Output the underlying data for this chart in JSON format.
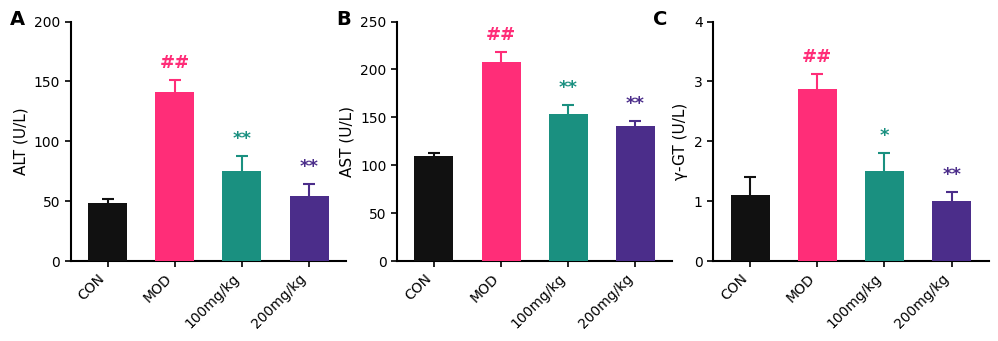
{
  "panels": [
    {
      "label": "A",
      "ylabel": "ALT (U/L)",
      "ylim": [
        0,
        200
      ],
      "yticks": [
        0,
        50,
        100,
        150,
        200
      ],
      "categories": [
        "CON",
        "MOD",
        "100mg/kg",
        "200mg/kg"
      ],
      "values": [
        48,
        141,
        75,
        54
      ],
      "errors": [
        4,
        10,
        13,
        10
      ],
      "colors": [
        "#111111",
        "#FF2D78",
        "#1A9080",
        "#4B2D8A"
      ],
      "annotations": [
        "",
        "##",
        "**",
        "**"
      ],
      "ann_colors": [
        "",
        "#FF2D78",
        "#1A9080",
        "#4B2D8A"
      ]
    },
    {
      "label": "B",
      "ylabel": "AST (U/L)",
      "ylim": [
        0,
        250
      ],
      "yticks": [
        0,
        50,
        100,
        150,
        200,
        250
      ],
      "categories": [
        "CON",
        "MOD",
        "100mg/kg",
        "200mg/kg"
      ],
      "values": [
        110,
        208,
        153,
        141
      ],
      "errors": [
        3,
        10,
        10,
        5
      ],
      "colors": [
        "#111111",
        "#FF2D78",
        "#1A9080",
        "#4B2D8A"
      ],
      "annotations": [
        "",
        "##",
        "**",
        "**"
      ],
      "ann_colors": [
        "",
        "#FF2D78",
        "#1A9080",
        "#4B2D8A"
      ]
    },
    {
      "label": "C",
      "ylabel": "γ-GT (U/L)",
      "ylim": [
        0,
        4
      ],
      "yticks": [
        0,
        1,
        2,
        3,
        4
      ],
      "categories": [
        "CON",
        "MOD",
        "100mg/kg",
        "200mg/kg"
      ],
      "values": [
        1.1,
        2.87,
        1.5,
        1.0
      ],
      "errors": [
        0.3,
        0.25,
        0.3,
        0.15
      ],
      "colors": [
        "#111111",
        "#FF2D78",
        "#1A9080",
        "#4B2D8A"
      ],
      "annotations": [
        "",
        "##",
        "*",
        "**"
      ],
      "ann_colors": [
        "",
        "#FF2D78",
        "#1A9080",
        "#4B2D8A"
      ]
    }
  ],
  "bar_width": 0.58,
  "capsize": 4,
  "fontsize_label": 11,
  "fontsize_tick": 10,
  "fontsize_ann": 13,
  "fontsize_panel_label": 14,
  "background_color": "#ffffff"
}
